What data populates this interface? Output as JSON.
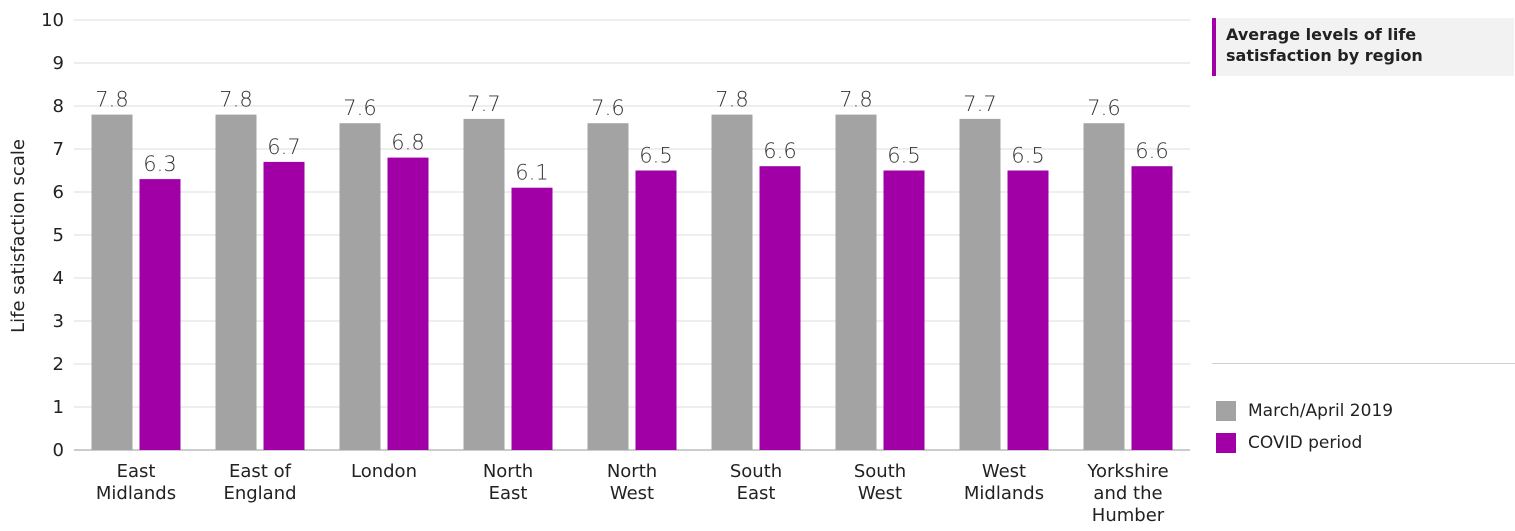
{
  "title": "Average levels of life satisfaction by region",
  "colors": {
    "accent": "#a000a6",
    "grid": "#dcdcdc"
  },
  "legend": [
    {
      "label": "March/April 2019",
      "color": "#a3a3a3"
    },
    {
      "label": "COVID period",
      "color": "#a000a6"
    }
  ],
  "chart_data": {
    "type": "bar",
    "title": "Average levels of life satisfaction by region",
    "xlabel": "",
    "ylabel": "Life satisfaction scale",
    "ylim": [
      0,
      10
    ],
    "yticks": [
      0,
      1,
      2,
      3,
      4,
      5,
      6,
      7,
      8,
      9,
      10
    ],
    "grid": true,
    "legend_position": "right",
    "categories": [
      [
        "East",
        "Midlands"
      ],
      [
        "East of",
        "England"
      ],
      [
        "London"
      ],
      [
        "North",
        "East"
      ],
      [
        "North",
        "West"
      ],
      [
        "South",
        "East"
      ],
      [
        "South",
        "West"
      ],
      [
        "West",
        "Midlands"
      ],
      [
        "Yorkshire",
        "and the",
        "Humber"
      ]
    ],
    "series": [
      {
        "name": "March/April 2019",
        "color": "#a3a3a3",
        "values": [
          7.8,
          7.8,
          7.6,
          7.7,
          7.6,
          7.8,
          7.8,
          7.7,
          7.6
        ]
      },
      {
        "name": "COVID period",
        "color": "#a000a6",
        "values": [
          6.3,
          6.7,
          6.8,
          6.1,
          6.5,
          6.6,
          6.5,
          6.5,
          6.6
        ]
      }
    ]
  }
}
